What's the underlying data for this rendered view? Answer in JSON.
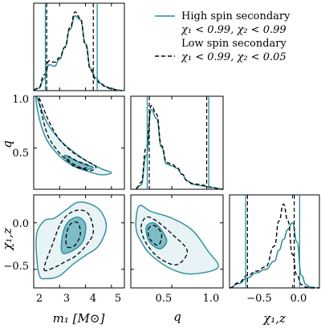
{
  "chart_data": {
    "type": "corner",
    "colors": {
      "high_spin": "#2b8c9b",
      "low_spin": "#000000",
      "fill_light": "#9ecfd6",
      "fill_dark": "#3a99a7"
    },
    "legend": {
      "placement": "top-right",
      "entries": [
        {
          "label": "High spin secondary",
          "sublabel": "χ₁ < 0.99, χ₂ < 0.99",
          "style": "solid",
          "color": "#2b8c9b"
        },
        {
          "label": "Low spin secondary",
          "sublabel": "χ₁ < 0.99, χ₂ < 0.05",
          "style": "dashed",
          "color": "#000000"
        }
      ]
    },
    "parameters": [
      {
        "label": "m₁ [M⊙]",
        "range": [
          2.0,
          5.5
        ],
        "ticks": [
          2,
          3,
          4,
          5
        ],
        "tick_labels": [
          "2",
          "3",
          "4",
          "5"
        ]
      },
      {
        "label": "q",
        "range": [
          0.1,
          1.0
        ],
        "ticks": [
          0.5,
          1.0
        ],
        "tick_labels": [
          "0.5",
          "1.0"
        ]
      },
      {
        "label": "χ₁,z",
        "range": [
          -0.7,
          0.3
        ],
        "ticks": [
          -0.5,
          0.0
        ],
        "tick_labels": [
          "−0.5",
          "0.0"
        ]
      }
    ],
    "left_ticks": {
      "q": {
        "ticks": [
          0.5,
          1.0
        ],
        "tick_labels": [
          "0.5",
          "1.0"
        ]
      },
      "chi": {
        "ticks": [
          0.0,
          -0.5
        ],
        "tick_labels": [
          "0.0",
          "−0.5"
        ]
      }
    },
    "marginals": {
      "m1": {
        "x": [
          2.0,
          2.2,
          2.4,
          2.6,
          2.8,
          3.0,
          3.2,
          3.4,
          3.6,
          3.8,
          4.0,
          4.2,
          4.4,
          4.6,
          4.8,
          5.0,
          5.2,
          5.4
        ],
        "high_spin": [
          0.01,
          0.03,
          0.15,
          0.33,
          0.31,
          0.4,
          0.55,
          0.78,
          0.95,
          0.9,
          0.6,
          0.28,
          0.16,
          0.09,
          0.05,
          0.03,
          0.01,
          0.0
        ],
        "low_spin": [
          0.01,
          0.04,
          0.2,
          0.38,
          0.36,
          0.42,
          0.55,
          0.8,
          1.0,
          0.92,
          0.58,
          0.26,
          0.14,
          0.08,
          0.04,
          0.02,
          0.01,
          0.0
        ],
        "high_spin_bounds": [
          2.45,
          4.45
        ],
        "low_spin_bounds": [
          2.5,
          4.3
        ]
      },
      "q": {
        "x": [
          0.15,
          0.2,
          0.25,
          0.3,
          0.35,
          0.4,
          0.45,
          0.5,
          0.55,
          0.6,
          0.65,
          0.7,
          0.75,
          0.8,
          0.85,
          0.9,
          0.95,
          1.0
        ],
        "high_spin": [
          0.01,
          0.05,
          0.4,
          0.95,
          0.85,
          0.5,
          0.3,
          0.28,
          0.25,
          0.18,
          0.1,
          0.06,
          0.05,
          0.04,
          0.03,
          0.02,
          0.01,
          0.0
        ],
        "low_spin": [
          0.01,
          0.08,
          0.5,
          1.0,
          0.9,
          0.52,
          0.32,
          0.3,
          0.26,
          0.18,
          0.1,
          0.07,
          0.06,
          0.05,
          0.03,
          0.02,
          0.01,
          0.0
        ],
        "high_spin_bounds": [
          0.26,
          0.86
        ],
        "low_spin_bounds": [
          0.28,
          0.84
        ]
      },
      "chi": {
        "x": [
          -0.7,
          -0.6,
          -0.5,
          -0.4,
          -0.3,
          -0.2,
          -0.15,
          -0.1,
          -0.05,
          0.0,
          0.05,
          0.1,
          0.15,
          0.2,
          0.3
        ],
        "high_spin": [
          0.0,
          0.05,
          0.12,
          0.18,
          0.22,
          0.32,
          0.45,
          0.58,
          0.7,
          0.78,
          0.55,
          0.15,
          0.04,
          0.01,
          0.0
        ],
        "low_spin": [
          0.0,
          0.06,
          0.15,
          0.2,
          0.25,
          0.5,
          0.8,
          1.0,
          0.8,
          0.4,
          0.15,
          0.04,
          0.01,
          0.0,
          0.0
        ],
        "high_spin_bounds": [
          -0.52,
          0.08
        ],
        "low_spin_bounds": [
          -0.5,
          0.02
        ]
      }
    },
    "contours_2d": {
      "m1_q": {
        "high_spin_outer": [
          [
            2.1,
            1.0
          ],
          [
            2.5,
            0.75
          ],
          [
            3.0,
            0.58
          ],
          [
            3.5,
            0.47
          ],
          [
            4.0,
            0.38
          ],
          [
            4.6,
            0.3
          ],
          [
            5.0,
            0.26
          ],
          [
            4.6,
            0.24
          ],
          [
            4.0,
            0.28
          ],
          [
            3.5,
            0.33
          ],
          [
            3.0,
            0.42
          ],
          [
            2.5,
            0.58
          ],
          [
            2.2,
            0.8
          ]
        ],
        "low_spin_outer": [
          [
            2.2,
            0.98
          ],
          [
            2.6,
            0.75
          ],
          [
            3.0,
            0.58
          ],
          [
            3.5,
            0.46
          ],
          [
            4.0,
            0.38
          ],
          [
            4.4,
            0.32
          ],
          [
            4.2,
            0.28
          ],
          [
            3.8,
            0.31
          ],
          [
            3.3,
            0.38
          ],
          [
            2.9,
            0.48
          ],
          [
            2.5,
            0.65
          ]
        ],
        "high_spin_inner": [
          [
            3.2,
            0.43
          ],
          [
            3.6,
            0.38
          ],
          [
            4.0,
            0.34
          ],
          [
            4.3,
            0.31
          ],
          [
            4.0,
            0.29
          ],
          [
            3.6,
            0.32
          ],
          [
            3.3,
            0.37
          ]
        ],
        "low_spin_inner": [
          [
            3.3,
            0.42
          ],
          [
            3.7,
            0.37
          ],
          [
            4.1,
            0.33
          ],
          [
            3.9,
            0.3
          ],
          [
            3.5,
            0.33
          ]
        ]
      },
      "m1_chi": {
        "high_spin_outer": [
          [
            2.2,
            -0.55
          ],
          [
            2.5,
            -0.6
          ],
          [
            3.0,
            -0.57
          ],
          [
            3.5,
            -0.45
          ],
          [
            4.0,
            -0.35
          ],
          [
            4.5,
            -0.25
          ],
          [
            4.8,
            -0.05
          ],
          [
            4.6,
            0.12
          ],
          [
            4.2,
            0.2
          ],
          [
            3.7,
            0.22
          ],
          [
            3.3,
            0.15
          ],
          [
            2.8,
            0.05
          ],
          [
            2.4,
            0.02
          ],
          [
            2.1,
            -0.15
          ]
        ],
        "low_spin_outer": [
          [
            2.4,
            -0.5
          ],
          [
            2.8,
            -0.48
          ],
          [
            3.2,
            -0.42
          ],
          [
            3.6,
            -0.36
          ],
          [
            4.0,
            -0.25
          ],
          [
            4.3,
            -0.1
          ],
          [
            4.1,
            0.1
          ],
          [
            3.6,
            0.13
          ],
          [
            3.1,
            0.02
          ],
          [
            2.7,
            -0.25
          ]
        ],
        "high_spin_inner": [
          [
            3.1,
            -0.32
          ],
          [
            3.5,
            -0.3
          ],
          [
            3.9,
            -0.2
          ],
          [
            4.0,
            -0.02
          ],
          [
            3.7,
            0.06
          ],
          [
            3.3,
            0.0
          ],
          [
            3.1,
            -0.15
          ]
        ],
        "low_spin_inner": [
          [
            3.3,
            -0.26
          ],
          [
            3.6,
            -0.24
          ],
          [
            3.8,
            -0.12
          ],
          [
            3.7,
            0.0
          ],
          [
            3.4,
            -0.02
          ],
          [
            3.25,
            -0.15
          ]
        ]
      },
      "q_chi": {
        "high_spin_outer": [
          [
            0.15,
            -0.05
          ],
          [
            0.18,
            0.18
          ],
          [
            0.3,
            0.12
          ],
          [
            0.5,
            0.05
          ],
          [
            0.7,
            -0.08
          ],
          [
            0.85,
            -0.3
          ],
          [
            0.95,
            -0.48
          ],
          [
            0.7,
            -0.55
          ],
          [
            0.5,
            -0.5
          ],
          [
            0.3,
            -0.35
          ],
          [
            0.2,
            -0.2
          ]
        ],
        "low_spin_outer": [
          [
            0.2,
            -0.05
          ],
          [
            0.25,
            0.06
          ],
          [
            0.35,
            0.02
          ],
          [
            0.5,
            -0.12
          ],
          [
            0.65,
            -0.3
          ],
          [
            0.55,
            -0.45
          ],
          [
            0.38,
            -0.38
          ],
          [
            0.25,
            -0.22
          ]
        ],
        "high_spin_inner": [
          [
            0.25,
            -0.05
          ],
          [
            0.32,
            0.0
          ],
          [
            0.4,
            -0.08
          ],
          [
            0.45,
            -0.2
          ],
          [
            0.38,
            -0.28
          ],
          [
            0.28,
            -0.2
          ]
        ],
        "low_spin_inner": [
          [
            0.27,
            -0.07
          ],
          [
            0.33,
            -0.03
          ],
          [
            0.4,
            -0.12
          ],
          [
            0.37,
            -0.24
          ],
          [
            0.29,
            -0.18
          ]
        ]
      }
    }
  }
}
